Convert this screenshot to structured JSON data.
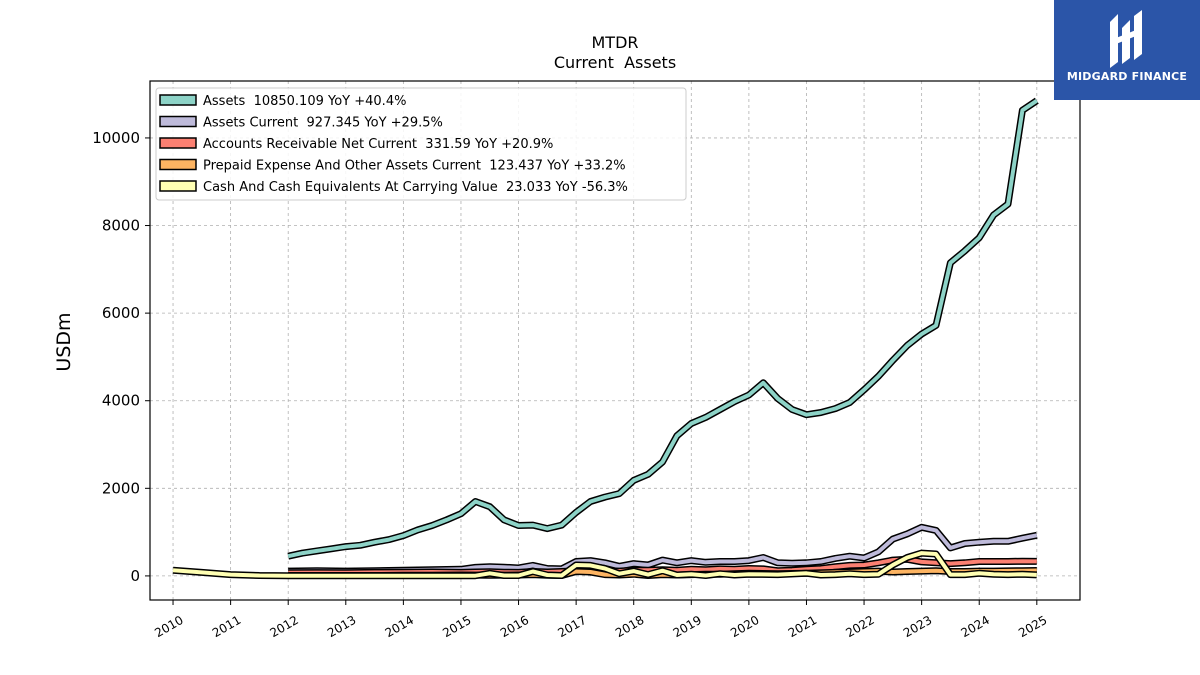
{
  "brand": {
    "name": "MIDGARD FINANCE",
    "color": "#2b55a8"
  },
  "chart_data": {
    "type": "line",
    "title": "MTDR",
    "subtitle": "Current  Assets",
    "ylabel": "USDm",
    "xlabel": "",
    "xlim": [
      2009.6,
      2025.75
    ],
    "ylim": [
      -550,
      11300
    ],
    "x_ticks": [
      2010,
      2011,
      2012,
      2013,
      2014,
      2015,
      2016,
      2017,
      2018,
      2019,
      2020,
      2021,
      2022,
      2023,
      2024,
      2025
    ],
    "x_tick_labels": [
      "2010",
      "2011",
      "2012",
      "2013",
      "2014",
      "2015",
      "2016",
      "2017",
      "2018",
      "2019",
      "2020",
      "2021",
      "2022",
      "2023",
      "2024",
      "2025"
    ],
    "y_ticks": [
      0,
      2000,
      4000,
      6000,
      8000,
      10000
    ],
    "y_tick_labels": [
      "0",
      "2000",
      "4000",
      "6000",
      "8000",
      "10000"
    ],
    "grid": true,
    "legend_position": "top-left",
    "series": [
      {
        "name": "Assets",
        "legend": "Assets  10850.109 YoY +40.4%",
        "color": "#8dd3c7",
        "x": [
          2012.0,
          2012.25,
          2012.5,
          2012.75,
          2013.0,
          2013.25,
          2013.5,
          2013.75,
          2014.0,
          2014.25,
          2014.5,
          2014.75,
          2015.0,
          2015.25,
          2015.5,
          2015.75,
          2016.0,
          2016.25,
          2016.5,
          2016.75,
          2017.0,
          2017.25,
          2017.5,
          2017.75,
          2018.0,
          2018.25,
          2018.5,
          2018.75,
          2019.0,
          2019.25,
          2019.5,
          2019.75,
          2020.0,
          2020.25,
          2020.5,
          2020.75,
          2021.0,
          2021.25,
          2021.5,
          2021.75,
          2022.0,
          2022.25,
          2022.5,
          2022.75,
          2023.0,
          2023.25,
          2023.5,
          2023.75,
          2024.0,
          2024.25,
          2024.5,
          2024.75,
          2025.0
        ],
        "values": [
          450,
          520,
          570,
          620,
          670,
          700,
          770,
          830,
          920,
          1050,
          1150,
          1280,
          1420,
          1700,
          1580,
          1280,
          1150,
          1160,
          1080,
          1160,
          1450,
          1700,
          1800,
          1880,
          2180,
          2320,
          2600,
          3200,
          3480,
          3620,
          3800,
          3980,
          4130,
          4410,
          4050,
          3800,
          3680,
          3730,
          3820,
          3960,
          4250,
          4560,
          4920,
          5260,
          5520,
          5720,
          7150,
          7420,
          7720,
          8240,
          8490,
          10630,
          10850
        ]
      },
      {
        "name": "Assets Current",
        "legend": "Assets Current  927.345 YoY +29.5%",
        "color": "#bebada",
        "x": [
          2012.0,
          2012.5,
          2013.0,
          2013.5,
          2014.0,
          2014.5,
          2015.0,
          2015.25,
          2015.5,
          2015.75,
          2016.0,
          2016.25,
          2016.5,
          2016.75,
          2017.0,
          2017.25,
          2017.5,
          2017.75,
          2018.0,
          2018.25,
          2018.5,
          2018.75,
          2019.0,
          2019.25,
          2019.5,
          2019.75,
          2020.0,
          2020.25,
          2020.5,
          2020.75,
          2021.0,
          2021.25,
          2021.5,
          2021.75,
          2022.0,
          2022.25,
          2022.5,
          2022.75,
          2023.0,
          2023.25,
          2023.5,
          2023.75,
          2024.0,
          2024.25,
          2024.5,
          2024.75,
          2025.0
        ],
        "values": [
          110,
          120,
          110,
          120,
          130,
          140,
          150,
          195,
          210,
          200,
          180,
          240,
          170,
          160,
          330,
          350,
          300,
          220,
          280,
          250,
          360,
          300,
          350,
          310,
          330,
          330,
          350,
          420,
          300,
          290,
          300,
          330,
          400,
          450,
          410,
          550,
          840,
          960,
          1110,
          1040,
          640,
          740,
          770,
          790,
          790,
          860,
          927
        ]
      },
      {
        "name": "Accounts Receivable Net Current",
        "legend": "Accounts Receivable Net Current  331.59 YoY +20.9%",
        "color": "#fb8072",
        "x": [
          2012.0,
          2012.5,
          2013.0,
          2013.5,
          2014.0,
          2014.5,
          2015.0,
          2015.25,
          2015.5,
          2015.75,
          2016.0,
          2016.25,
          2016.5,
          2016.75,
          2017.0,
          2017.25,
          2017.5,
          2017.75,
          2018.0,
          2018.25,
          2018.5,
          2018.75,
          2019.0,
          2019.25,
          2019.5,
          2019.75,
          2020.0,
          2020.25,
          2020.5,
          2020.75,
          2021.0,
          2021.25,
          2021.5,
          2021.75,
          2022.0,
          2022.25,
          2022.5,
          2022.75,
          2023.0,
          2023.25,
          2023.5,
          2023.75,
          2024.0,
          2024.25,
          2024.5,
          2024.75,
          2025.0
        ],
        "values": [
          70,
          75,
          70,
          80,
          85,
          90,
          80,
          90,
          95,
          85,
          80,
          100,
          90,
          100,
          120,
          130,
          120,
          110,
          130,
          130,
          140,
          130,
          150,
          140,
          160,
          150,
          170,
          160,
          120,
          130,
          150,
          170,
          210,
          240,
          250,
          300,
          360,
          380,
          320,
          300,
          280,
          300,
          330,
          330,
          330,
          335,
          332
        ]
      },
      {
        "name": "Prepaid Expense And Other Assets Current",
        "legend": "Prepaid Expense And Other Assets Current  123.437 YoY +33.2%",
        "color": "#fdb462",
        "x": [
          2012.0,
          2012.5,
          2013.0,
          2013.5,
          2014.0,
          2014.5,
          2015.0,
          2015.5,
          2016.0,
          2016.25,
          2016.5,
          2016.75,
          2017.0,
          2017.25,
          2017.5,
          2017.75,
          2018.0,
          2018.25,
          2018.5,
          2018.75,
          2019.0,
          2019.25,
          2019.5,
          2019.75,
          2020.0,
          2020.5,
          2021.0,
          2021.5,
          2022.0,
          2022.25,
          2022.5,
          2022.75,
          2023.0,
          2023.25,
          2023.5,
          2023.75,
          2024.0,
          2024.25,
          2024.5,
          2024.75,
          2025.0
        ],
        "values": [
          10,
          10,
          10,
          10,
          15,
          15,
          20,
          15,
          20,
          30,
          15,
          10,
          100,
          90,
          30,
          20,
          40,
          10,
          30,
          20,
          30,
          40,
          40,
          50,
          60,
          50,
          60,
          80,
          100,
          110,
          90,
          100,
          110,
          120,
          100,
          100,
          110,
          110,
          115,
          120,
          123
        ]
      },
      {
        "name": "Cash And Cash Equivalents At Carrying Value",
        "legend": "Cash And Cash Equivalents At Carrying Value  23.033 YoY -56.3%",
        "color": "#ffffb3",
        "x": [
          2010.0,
          2010.5,
          2011.0,
          2011.5,
          2012.0,
          2012.5,
          2013.0,
          2013.5,
          2014.0,
          2014.5,
          2015.0,
          2015.25,
          2015.5,
          2015.75,
          2016.0,
          2016.25,
          2016.5,
          2016.75,
          2017.0,
          2017.25,
          2017.5,
          2017.75,
          2018.0,
          2018.25,
          2018.5,
          2018.75,
          2019.0,
          2019.25,
          2019.5,
          2019.75,
          2020.0,
          2020.5,
          2021.0,
          2021.25,
          2021.5,
          2021.75,
          2022.0,
          2022.25,
          2022.5,
          2022.75,
          2023.0,
          2023.25,
          2023.5,
          2023.75,
          2024.0,
          2024.25,
          2024.5,
          2024.75,
          2025.0
        ],
        "values": [
          130,
          80,
          30,
          10,
          5,
          5,
          5,
          5,
          5,
          5,
          5,
          5,
          60,
          10,
          10,
          100,
          20,
          10,
          250,
          240,
          170,
          50,
          110,
          30,
          120,
          20,
          40,
          10,
          50,
          20,
          40,
          30,
          60,
          20,
          30,
          50,
          30,
          40,
          250,
          420,
          520,
          500,
          30,
          30,
          60,
          40,
          30,
          40,
          23
        ]
      }
    ]
  }
}
